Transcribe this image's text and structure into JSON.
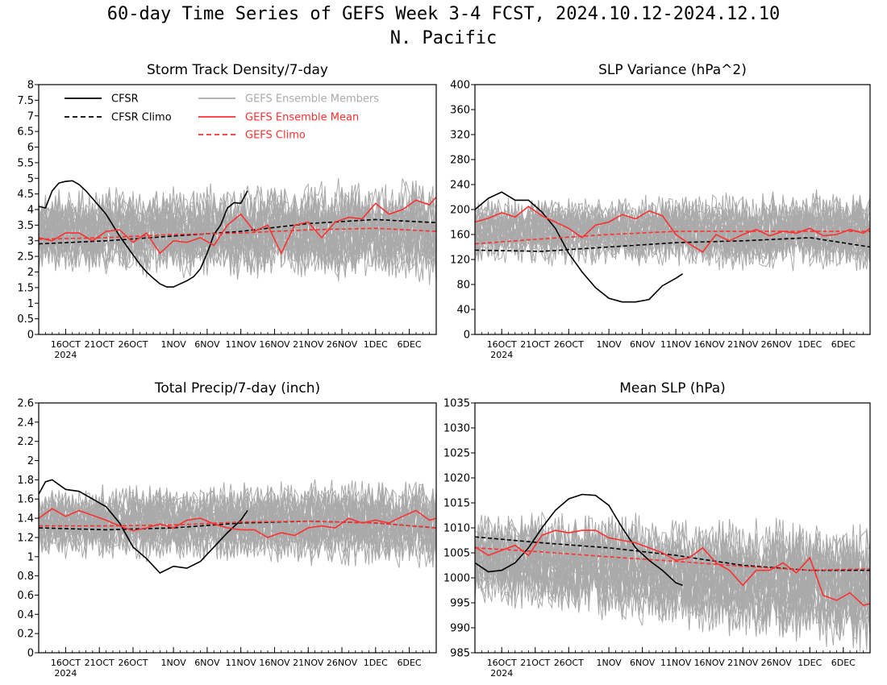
{
  "figure": {
    "title_line1": "60-day Time Series of GEFS Week 3-4 FCST, 2024.10.12-2024.12.10",
    "title_line2": "N. Pacific"
  },
  "colors": {
    "cfsr": "#000000",
    "members": "#aaaaaa",
    "ens_mean": "#ff3030",
    "gefs_climo": "#ff3030",
    "frame": "#000000"
  },
  "x_axis": {
    "start_date": "2024-10-12",
    "end_date": "2024-12-10",
    "tick_labels": [
      "16OCT",
      "21OCT",
      "26OCT",
      "1NOV",
      "6NOV",
      "11NOV",
      "16NOV",
      "21NOV",
      "26NOV",
      "1DEC",
      "6DEC"
    ],
    "tick_dates": [
      "2024-10-16",
      "2024-10-21",
      "2024-10-26",
      "2024-11-01",
      "2024-11-06",
      "2024-11-11",
      "2024-11-16",
      "2024-11-21",
      "2024-11-26",
      "2024-12-01",
      "2024-12-06"
    ],
    "year_label": "2024"
  },
  "legend": {
    "cfsr": "CFSR",
    "cfsr_climo": "CFSR Climo",
    "members": "GEFS Ensemble Members",
    "ens_mean": "GEFS Ensemble Mean",
    "gefs_climo": "GEFS Climo"
  },
  "chart_data": [
    {
      "type": "line",
      "title": "Storm Track Density/7-day",
      "ylim": [
        0,
        8
      ],
      "yticks": [
        0,
        0.5,
        1,
        1.5,
        2,
        2.5,
        3,
        3.5,
        4,
        4.5,
        5,
        5.5,
        6,
        6.5,
        7,
        7.5,
        8
      ],
      "legend_shown": true,
      "members_count": 30,
      "members_center": 3.3,
      "members_spread": [
        1.4,
        1.8
      ],
      "series": [
        {
          "name": "CFSR",
          "style": "solid-black",
          "x": [
            "2024-10-12",
            "2024-10-13",
            "2024-10-14",
            "2024-10-15",
            "2024-10-16",
            "2024-10-17",
            "2024-10-18",
            "2024-10-19",
            "2024-10-20",
            "2024-10-21",
            "2024-10-22",
            "2024-10-23",
            "2024-10-24",
            "2024-10-25",
            "2024-10-26",
            "2024-10-27",
            "2024-10-28",
            "2024-10-29",
            "2024-10-30",
            "2024-10-31",
            "2024-11-01",
            "2024-11-02",
            "2024-11-03",
            "2024-11-04",
            "2024-11-05",
            "2024-11-06",
            "2024-11-07",
            "2024-11-08",
            "2024-11-09",
            "2024-11-10",
            "2024-11-11",
            "2024-11-12"
          ],
          "values": [
            4.1,
            4.05,
            4.6,
            4.85,
            4.9,
            4.92,
            4.8,
            4.6,
            4.35,
            4.1,
            3.85,
            3.5,
            3.15,
            2.85,
            2.55,
            2.25,
            2.0,
            1.8,
            1.62,
            1.52,
            1.52,
            1.62,
            1.72,
            1.85,
            2.1,
            2.6,
            3.2,
            3.5,
            4.05,
            4.22,
            4.2,
            4.6
          ]
        },
        {
          "name": "CFSR Climo",
          "style": "dashed-black",
          "x": [
            "2024-10-12",
            "2024-10-22",
            "2024-11-01",
            "2024-11-11",
            "2024-11-21",
            "2024-12-01",
            "2024-12-10"
          ],
          "values": [
            2.9,
            3.0,
            3.15,
            3.3,
            3.55,
            3.68,
            3.58
          ]
        },
        {
          "name": "GEFS Ensemble Mean",
          "style": "solid-red",
          "x": [
            "2024-10-12",
            "2024-10-14",
            "2024-10-16",
            "2024-10-18",
            "2024-10-20",
            "2024-10-22",
            "2024-10-24",
            "2024-10-26",
            "2024-10-28",
            "2024-10-30",
            "2024-11-01",
            "2024-11-03",
            "2024-11-05",
            "2024-11-07",
            "2024-11-09",
            "2024-11-11",
            "2024-11-13",
            "2024-11-15",
            "2024-11-17",
            "2024-11-19",
            "2024-11-21",
            "2024-11-23",
            "2024-11-25",
            "2024-11-27",
            "2024-11-29",
            "2024-12-01",
            "2024-12-03",
            "2024-12-05",
            "2024-12-07",
            "2024-12-09",
            "2024-12-10"
          ],
          "values": [
            3.1,
            3.0,
            3.25,
            3.25,
            3.0,
            3.3,
            3.35,
            2.95,
            3.25,
            2.6,
            3.0,
            2.95,
            3.1,
            2.85,
            3.5,
            3.85,
            3.3,
            3.5,
            2.6,
            3.5,
            3.6,
            3.1,
            3.6,
            3.75,
            3.7,
            4.2,
            3.85,
            4.0,
            4.3,
            4.15,
            4.4
          ]
        },
        {
          "name": "GEFS Climo",
          "style": "dashed-red",
          "x": [
            "2024-10-12",
            "2024-10-22",
            "2024-11-01",
            "2024-11-11",
            "2024-11-21",
            "2024-12-01",
            "2024-12-10"
          ],
          "values": [
            3.05,
            3.1,
            3.2,
            3.25,
            3.35,
            3.4,
            3.3
          ]
        }
      ]
    },
    {
      "type": "line",
      "title": "SLP Variance (hPa^2)",
      "ylim": [
        0,
        400
      ],
      "yticks": [
        0,
        40,
        80,
        120,
        160,
        200,
        240,
        280,
        320,
        360,
        400
      ],
      "legend_shown": false,
      "members_count": 30,
      "members_center": 165,
      "members_spread": [
        55,
        70
      ],
      "series": [
        {
          "name": "CFSR",
          "style": "solid-black",
          "x": [
            "2024-10-12",
            "2024-10-14",
            "2024-10-16",
            "2024-10-18",
            "2024-10-20",
            "2024-10-22",
            "2024-10-24",
            "2024-10-26",
            "2024-10-28",
            "2024-10-30",
            "2024-11-01",
            "2024-11-03",
            "2024-11-05",
            "2024-11-07",
            "2024-11-09",
            "2024-11-11",
            "2024-11-12"
          ],
          "values": [
            200,
            218,
            228,
            215,
            215,
            196,
            170,
            130,
            100,
            75,
            58,
            52,
            52,
            56,
            78,
            90,
            97
          ]
        },
        {
          "name": "CFSR Climo",
          "style": "dashed-black",
          "x": [
            "2024-10-12",
            "2024-10-22",
            "2024-11-01",
            "2024-11-11",
            "2024-11-21",
            "2024-12-01",
            "2024-12-10"
          ],
          "values": [
            135,
            133,
            140,
            147,
            150,
            155,
            140
          ]
        },
        {
          "name": "GEFS Ensemble Mean",
          "style": "solid-red",
          "x": [
            "2024-10-12",
            "2024-10-14",
            "2024-10-16",
            "2024-10-18",
            "2024-10-20",
            "2024-10-22",
            "2024-10-24",
            "2024-10-26",
            "2024-10-28",
            "2024-10-30",
            "2024-11-01",
            "2024-11-03",
            "2024-11-05",
            "2024-11-07",
            "2024-11-09",
            "2024-11-11",
            "2024-11-13",
            "2024-11-15",
            "2024-11-17",
            "2024-11-19",
            "2024-11-21",
            "2024-11-23",
            "2024-11-25",
            "2024-11-27",
            "2024-11-29",
            "2024-12-01",
            "2024-12-03",
            "2024-12-05",
            "2024-12-07",
            "2024-12-09",
            "2024-12-10"
          ],
          "values": [
            180,
            186,
            195,
            188,
            205,
            190,
            180,
            170,
            155,
            175,
            180,
            192,
            185,
            198,
            190,
            160,
            145,
            132,
            160,
            150,
            160,
            168,
            158,
            165,
            162,
            170,
            158,
            160,
            168,
            162,
            170
          ]
        },
        {
          "name": "GEFS Climo",
          "style": "dashed-red",
          "x": [
            "2024-10-12",
            "2024-10-22",
            "2024-11-01",
            "2024-11-11",
            "2024-11-21",
            "2024-12-01",
            "2024-12-10"
          ],
          "values": [
            145,
            153,
            160,
            165,
            165,
            165,
            165
          ]
        }
      ]
    },
    {
      "type": "line",
      "title": "Total Precip/7-day (inch)",
      "ylim": [
        0,
        2.6
      ],
      "yticks": [
        0,
        0.2,
        0.4,
        0.6,
        0.8,
        1,
        1.2,
        1.4,
        1.6,
        1.8,
        2,
        2.2,
        2.4,
        2.6
      ],
      "legend_shown": false,
      "members_count": 30,
      "members_center": 1.35,
      "members_spread": [
        0.4,
        0.5
      ],
      "series": [
        {
          "name": "CFSR",
          "style": "solid-black",
          "x": [
            "2024-10-12",
            "2024-10-13",
            "2024-10-14",
            "2024-10-16",
            "2024-10-18",
            "2024-10-20",
            "2024-10-22",
            "2024-10-24",
            "2024-10-26",
            "2024-10-28",
            "2024-10-30",
            "2024-11-01",
            "2024-11-03",
            "2024-11-05",
            "2024-11-07",
            "2024-11-09",
            "2024-11-11",
            "2024-11-12"
          ],
          "values": [
            1.65,
            1.78,
            1.8,
            1.7,
            1.68,
            1.6,
            1.52,
            1.35,
            1.1,
            0.98,
            0.83,
            0.9,
            0.88,
            0.95,
            1.1,
            1.25,
            1.38,
            1.48
          ]
        },
        {
          "name": "CFSR Climo",
          "style": "dashed-black",
          "x": [
            "2024-10-12",
            "2024-10-22",
            "2024-11-01",
            "2024-11-11",
            "2024-11-21",
            "2024-12-01",
            "2024-12-10"
          ],
          "values": [
            1.3,
            1.28,
            1.3,
            1.35,
            1.37,
            1.35,
            1.3
          ]
        },
        {
          "name": "GEFS Ensemble Mean",
          "style": "solid-red",
          "x": [
            "2024-10-12",
            "2024-10-14",
            "2024-10-16",
            "2024-10-18",
            "2024-10-20",
            "2024-10-22",
            "2024-10-24",
            "2024-10-26",
            "2024-10-28",
            "2024-10-30",
            "2024-11-01",
            "2024-11-03",
            "2024-11-05",
            "2024-11-07",
            "2024-11-09",
            "2024-11-11",
            "2024-11-13",
            "2024-11-15",
            "2024-11-17",
            "2024-11-19",
            "2024-11-21",
            "2024-11-23",
            "2024-11-25",
            "2024-11-27",
            "2024-11-29",
            "2024-12-01",
            "2024-12-03",
            "2024-12-05",
            "2024-12-07",
            "2024-12-09",
            "2024-12-10"
          ],
          "values": [
            1.4,
            1.5,
            1.42,
            1.48,
            1.43,
            1.38,
            1.32,
            1.27,
            1.3,
            1.34,
            1.3,
            1.38,
            1.4,
            1.34,
            1.3,
            1.28,
            1.28,
            1.2,
            1.25,
            1.22,
            1.3,
            1.32,
            1.3,
            1.4,
            1.35,
            1.38,
            1.35,
            1.42,
            1.48,
            1.38,
            1.4
          ]
        },
        {
          "name": "GEFS Climo",
          "style": "dashed-red",
          "x": [
            "2024-10-12",
            "2024-10-22",
            "2024-11-01",
            "2024-11-11",
            "2024-11-21",
            "2024-12-01",
            "2024-12-10"
          ],
          "values": [
            1.32,
            1.32,
            1.33,
            1.36,
            1.37,
            1.35,
            1.3
          ]
        }
      ]
    },
    {
      "type": "line",
      "title": "Mean SLP (hPa)",
      "ylim": [
        985,
        1035
      ],
      "yticks": [
        985,
        990,
        995,
        1000,
        1005,
        1010,
        1015,
        1020,
        1025,
        1030,
        1035
      ],
      "legend_shown": false,
      "members_count": 30,
      "members_center": 1004,
      "members_spread": [
        10,
        14
      ],
      "series": [
        {
          "name": "CFSR",
          "style": "solid-black",
          "x": [
            "2024-10-12",
            "2024-10-14",
            "2024-10-16",
            "2024-10-18",
            "2024-10-20",
            "2024-10-22",
            "2024-10-24",
            "2024-10-26",
            "2024-10-28",
            "2024-10-30",
            "2024-11-01",
            "2024-11-03",
            "2024-11-05",
            "2024-11-07",
            "2024-11-09",
            "2024-11-11",
            "2024-11-12"
          ],
          "values": [
            1003,
            1001.2,
            1001.5,
            1003,
            1006,
            1010,
            1013.5,
            1015.8,
            1016.7,
            1016.5,
            1014.5,
            1010,
            1006,
            1003.5,
            1001.5,
            999,
            998.5
          ]
        },
        {
          "name": "CFSR Climo",
          "style": "dashed-black",
          "x": [
            "2024-10-12",
            "2024-10-22",
            "2024-11-01",
            "2024-11-11",
            "2024-11-21",
            "2024-12-01",
            "2024-12-10"
          ],
          "values": [
            1008.2,
            1007,
            1006,
            1004.5,
            1002.5,
            1001.5,
            1001.5
          ]
        },
        {
          "name": "GEFS Ensemble Mean",
          "style": "solid-red",
          "x": [
            "2024-10-12",
            "2024-10-14",
            "2024-10-16",
            "2024-10-18",
            "2024-10-20",
            "2024-10-22",
            "2024-10-24",
            "2024-10-26",
            "2024-10-28",
            "2024-10-30",
            "2024-11-01",
            "2024-11-03",
            "2024-11-05",
            "2024-11-07",
            "2024-11-09",
            "2024-11-11",
            "2024-11-13",
            "2024-11-15",
            "2024-11-17",
            "2024-11-19",
            "2024-11-21",
            "2024-11-23",
            "2024-11-25",
            "2024-11-27",
            "2024-11-29",
            "2024-12-01",
            "2024-12-03",
            "2024-12-05",
            "2024-12-07",
            "2024-12-09",
            "2024-12-10"
          ],
          "values": [
            1006.2,
            1004.5,
            1005.5,
            1006.5,
            1004.5,
            1008.5,
            1009.5,
            1009,
            1009.5,
            1009.5,
            1008,
            1007.5,
            1007,
            1006,
            1005,
            1003.5,
            1004,
            1006,
            1003,
            1001.5,
            998.5,
            1001.5,
            1001.5,
            1003,
            1001,
            1004,
            996.5,
            995.5,
            997,
            994.5,
            994.8
          ]
        },
        {
          "name": "GEFS Climo",
          "style": "dashed-red",
          "x": [
            "2024-10-12",
            "2024-10-22",
            "2024-11-01",
            "2024-11-11",
            "2024-11-21",
            "2024-12-01",
            "2024-12-10"
          ],
          "values": [
            1006,
            1005.2,
            1004.2,
            1003.3,
            1002.3,
            1001.5,
            1001.8
          ]
        }
      ]
    }
  ]
}
